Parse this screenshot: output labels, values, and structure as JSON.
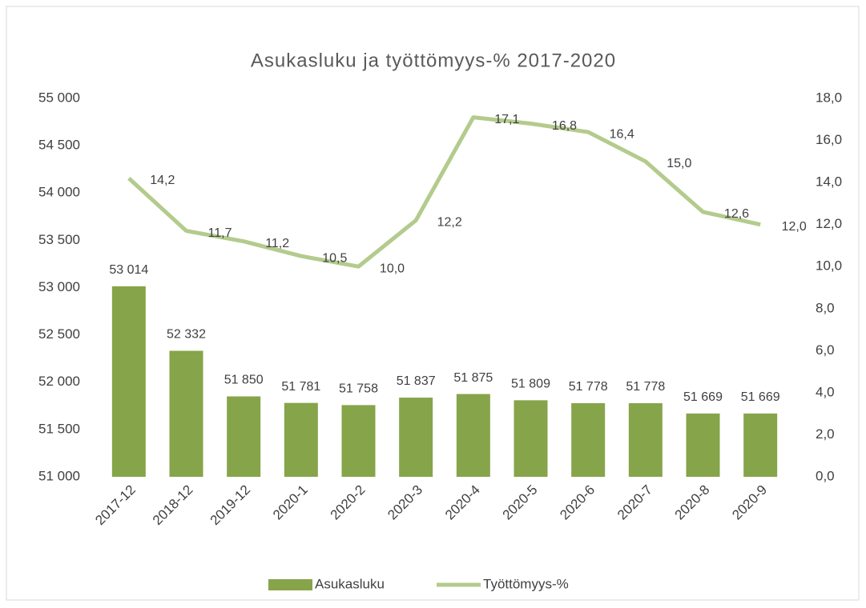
{
  "chart_data": {
    "type": "bar",
    "title": "Asukasluku ja työttömyys-% 2017-2020",
    "categories": [
      "2017-12",
      "2018-12",
      "2019-12",
      "2020-1",
      "2020-2",
      "2020-3",
      "2020-4",
      "2020-5",
      "2020-6",
      "2020-7",
      "2020-8",
      "2020-9"
    ],
    "series": [
      {
        "name": "Asukasluku",
        "color": "#86a44a",
        "values": [
          53014,
          52332,
          51850,
          51781,
          51758,
          51837,
          51875,
          51809,
          51778,
          51778,
          51669,
          51669
        ],
        "value_labels": [
          "53 014",
          "52 332",
          "51 850",
          "51 781",
          "51 758",
          "51 837",
          "51 875",
          "51 809",
          "51 778",
          "51 778",
          "51 669",
          "51 669"
        ]
      },
      {
        "name": "Työttömyys-%",
        "color": "#b3cb8c",
        "type": "line",
        "axis": "y2",
        "values": [
          14.2,
          11.7,
          11.2,
          10.5,
          10.0,
          12.2,
          17.1,
          16.8,
          16.4,
          15.0,
          12.6,
          12.0
        ],
        "value_labels": [
          "14,2",
          "11,7",
          "11,2",
          "10,5",
          "10,0",
          "12,2",
          "17,1",
          "16,8",
          "16,4",
          "15,0",
          "12,6",
          "12,0"
        ]
      }
    ],
    "ylim": [
      51000,
      55000
    ],
    "yticks": [
      {
        "value": 51000,
        "label": "51 000"
      },
      {
        "value": 51500,
        "label": "51 500"
      },
      {
        "value": 52000,
        "label": "52 000"
      },
      {
        "value": 52500,
        "label": "52 500"
      },
      {
        "value": 53000,
        "label": "53 000"
      },
      {
        "value": 53500,
        "label": "53 500"
      },
      {
        "value": 54000,
        "label": "54 000"
      },
      {
        "value": 54500,
        "label": "54 500"
      },
      {
        "value": 55000,
        "label": "55 000"
      }
    ],
    "y2lim": [
      0,
      18
    ],
    "y2ticks": [
      {
        "value": 0,
        "label": "0,0"
      },
      {
        "value": 2,
        "label": "2,0"
      },
      {
        "value": 4,
        "label": "4,0"
      },
      {
        "value": 6,
        "label": "6,0"
      },
      {
        "value": 8,
        "label": "8,0"
      },
      {
        "value": 10,
        "label": "10,0"
      },
      {
        "value": 12,
        "label": "12,0"
      },
      {
        "value": 14,
        "label": "14,0"
      },
      {
        "value": 16,
        "label": "16,0"
      },
      {
        "value": 18,
        "label": "18,0"
      }
    ],
    "grid": false,
    "legend": "bottom"
  }
}
